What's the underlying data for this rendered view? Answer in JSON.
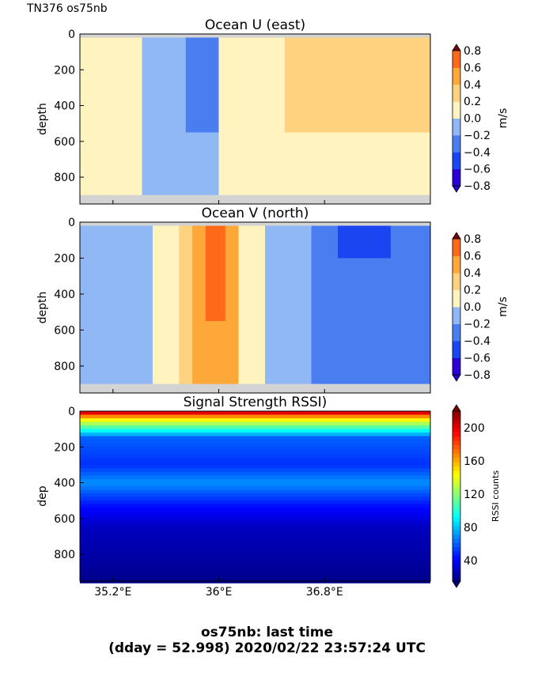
{
  "figure": {
    "label": "TN376 os75nb",
    "footer_line1": "os75nb: last time",
    "footer_line2": "(dday = 52.998) 2020/02/22 23:57:24 UTC"
  },
  "colors": {
    "nodata": "#d3d3d3",
    "vel_levels": [
      "#2a00d5",
      "#1a45f0",
      "#4a7ef0",
      "#8fb8f5",
      "#cfe7f7",
      "#fff4c0",
      "#ffd27f",
      "#ffa83a",
      "#ff6a1a",
      "#dc2010",
      "#7a0010"
    ],
    "rssi_ramp": [
      "#00007f",
      "#0000ff",
      "#007fff",
      "#00ffff",
      "#7fff7f",
      "#ffff00",
      "#ff7f00",
      "#ff0000",
      "#7f0000"
    ]
  },
  "chart_data": [
    {
      "type": "heatmap",
      "title": "Ocean U (east)",
      "ylabel": "depth",
      "x_ticks": [
        "35.2°E",
        "36°E",
        "36.8°E"
      ],
      "y_ticks": [
        "0",
        "200",
        "400",
        "600",
        "800"
      ],
      "ylim": [
        950,
        0
      ],
      "colorbar": {
        "label": "m/s",
        "ticks": [
          "0.8",
          "0.6",
          "0.4",
          "0.2",
          "0.0",
          "−0.2",
          "−0.4",
          "−0.6",
          "−0.8"
        ]
      },
      "regions": [
        {
          "x": [
            34.95,
            35.42
          ],
          "level": 0.05
        },
        {
          "x": [
            35.42,
            35.75
          ],
          "level": -0.25
        },
        {
          "x": [
            35.75,
            36.0
          ],
          "level": -0.45,
          "depth_max": 550
        },
        {
          "x": [
            35.75,
            36.0
          ],
          "level": -0.25,
          "depth_min": 550
        },
        {
          "x": [
            36.0,
            36.5
          ],
          "level": 0.05
        },
        {
          "x": [
            36.5,
            37.6
          ],
          "level": 0.25,
          "depth_max": 550
        },
        {
          "x": [
            36.5,
            37.6
          ],
          "level": 0.05,
          "depth_min": 550
        }
      ]
    },
    {
      "type": "heatmap",
      "title": "Ocean V (north)",
      "ylabel": "depth",
      "x_ticks": [
        "35.2°E",
        "36°E",
        "36.8°E"
      ],
      "y_ticks": [
        "0",
        "200",
        "400",
        "600",
        "800"
      ],
      "ylim": [
        950,
        0
      ],
      "colorbar": {
        "label": "m/s",
        "ticks": [
          "0.8",
          "0.6",
          "0.4",
          "0.2",
          "0.0",
          "−0.2",
          "−0.4",
          "−0.6",
          "−0.8"
        ]
      },
      "regions": [
        {
          "x": [
            34.95,
            35.5
          ],
          "level": -0.25
        },
        {
          "x": [
            35.5,
            35.7
          ],
          "level": 0.05
        },
        {
          "x": [
            35.7,
            35.8
          ],
          "level": 0.25
        },
        {
          "x": [
            35.8,
            36.15
          ],
          "level": 0.45
        },
        {
          "x": [
            35.9,
            36.05
          ],
          "level": 0.65,
          "depth_max": 550
        },
        {
          "x": [
            36.15,
            36.35
          ],
          "level": 0.05
        },
        {
          "x": [
            36.35,
            36.7
          ],
          "level": -0.25
        },
        {
          "x": [
            36.7,
            37.6
          ],
          "level": -0.45
        },
        {
          "x": [
            36.9,
            37.3
          ],
          "level": -0.65,
          "depth_max": 200
        }
      ]
    },
    {
      "type": "heatmap",
      "title": "Signal Strength RSSI)",
      "ylabel": "dep",
      "x_ticks": [
        "35.2°E",
        "36°E",
        "36.8°E"
      ],
      "y_ticks": [
        "0",
        "200",
        "400",
        "600",
        "800"
      ],
      "ylim": [
        950,
        0
      ],
      "colorbar": {
        "label": "RSSI counts",
        "ticks": [
          "200",
          "160",
          "120",
          "80",
          "40"
        ]
      },
      "depth_profile": [
        {
          "depth": 0,
          "value": 215
        },
        {
          "depth": 40,
          "value": 150
        },
        {
          "depth": 150,
          "value": 60
        },
        {
          "depth": 300,
          "value": 50
        },
        {
          "depth": 400,
          "value": 70
        },
        {
          "depth": 520,
          "value": 45
        },
        {
          "depth": 650,
          "value": 28
        },
        {
          "depth": 950,
          "value": 18
        }
      ]
    }
  ]
}
